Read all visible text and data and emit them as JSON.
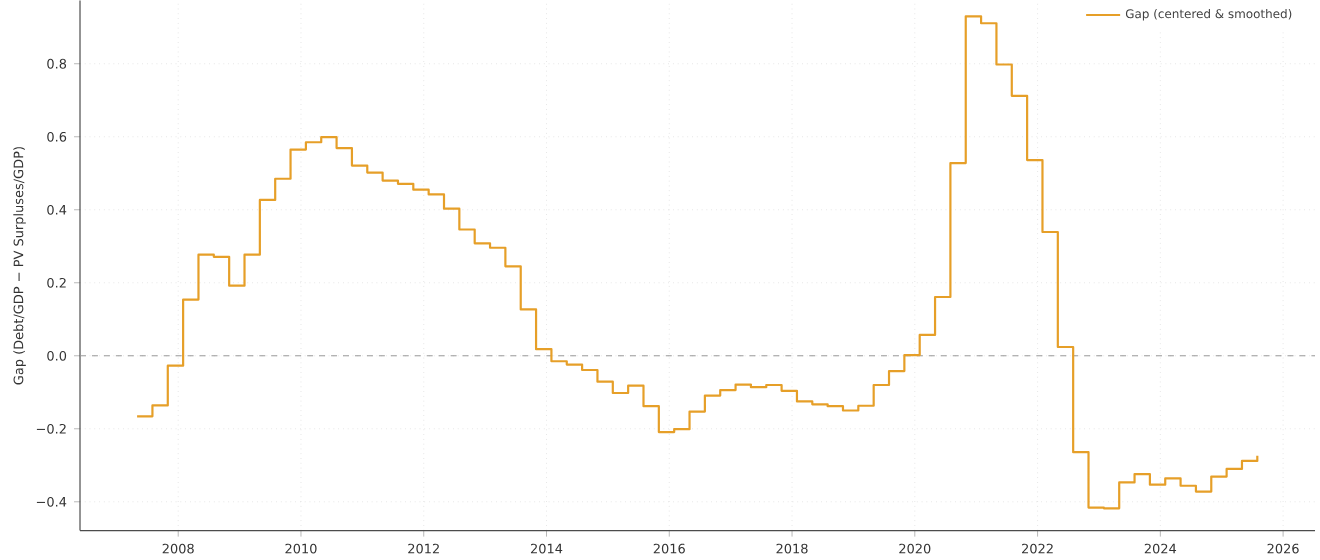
{
  "chart_data": {
    "type": "step",
    "ylabel": "Gap (Debt/GDP − PV Surpluses/GDP)",
    "x": [
      2007.33,
      2007.58,
      2007.83,
      2008.08,
      2008.33,
      2008.58,
      2008.83,
      2009.08,
      2009.33,
      2009.58,
      2009.83,
      2010.08,
      2010.33,
      2010.58,
      2010.83,
      2011.08,
      2011.33,
      2011.58,
      2011.83,
      2012.08,
      2012.33,
      2012.58,
      2012.83,
      2013.08,
      2013.33,
      2013.58,
      2013.83,
      2014.08,
      2014.33,
      2014.58,
      2014.83,
      2015.08,
      2015.33,
      2015.58,
      2015.83,
      2016.08,
      2016.33,
      2016.58,
      2016.83,
      2017.08,
      2017.33,
      2017.58,
      2017.83,
      2018.08,
      2018.33,
      2018.58,
      2018.83,
      2019.08,
      2019.33,
      2019.58,
      2019.83,
      2020.08,
      2020.33,
      2020.58,
      2020.83,
      2021.08,
      2021.33,
      2021.58,
      2021.83,
      2022.08,
      2022.33,
      2022.58,
      2022.83,
      2023.08,
      2023.33,
      2023.58,
      2023.83,
      2024.08,
      2024.33,
      2024.58,
      2024.83,
      2025.08,
      2025.33,
      2025.58
    ],
    "series": [
      {
        "name": "Gap (centered & smoothed)",
        "color": "#e69f28",
        "values": [
          -0.166,
          -0.136,
          -0.027,
          0.154,
          0.277,
          0.271,
          0.192,
          0.277,
          0.427,
          0.485,
          0.565,
          0.585,
          0.599,
          0.569,
          0.521,
          0.502,
          0.48,
          0.471,
          0.455,
          0.442,
          0.403,
          0.346,
          0.308,
          0.296,
          0.245,
          0.127,
          0.018,
          -0.015,
          -0.024,
          -0.039,
          -0.071,
          -0.102,
          -0.082,
          -0.138,
          -0.209,
          -0.201,
          -0.153,
          -0.109,
          -0.094,
          -0.079,
          -0.086,
          -0.08,
          -0.096,
          -0.125,
          -0.133,
          -0.138,
          -0.15,
          -0.137,
          -0.08,
          -0.042,
          0.002,
          0.057,
          0.161,
          0.528,
          0.93,
          0.911,
          0.798,
          0.712,
          0.536,
          0.339,
          0.024,
          -0.264,
          -0.416,
          -0.418,
          -0.347,
          -0.324,
          -0.353,
          -0.336,
          -0.356,
          -0.372,
          -0.331,
          -0.31,
          -0.288,
          -0.274
        ]
      }
    ],
    "xlim": [
      2006.4,
      2026.52
    ],
    "ylim": [
      -0.479,
      0.973
    ],
    "xticks": [
      2008,
      2010,
      2012,
      2014,
      2016,
      2018,
      2020,
      2022,
      2024,
      2026
    ],
    "yticks": [
      {
        "value": -0.4,
        "label": "−0.4"
      },
      {
        "value": -0.2,
        "label": "−0.2"
      },
      {
        "value": 0,
        "label": "0.0"
      },
      {
        "value": 0.2,
        "label": "0.2"
      },
      {
        "value": 0.4,
        "label": "0.4"
      },
      {
        "value": 0.6,
        "label": "0.6"
      },
      {
        "value": 0.8,
        "label": "0.8"
      }
    ],
    "ref_lines": [
      {
        "axis": "y",
        "value": 0,
        "color": "#999999",
        "line_style": "dashed"
      }
    ],
    "grid": true,
    "legend": "top right",
    "line_style": "solid"
  }
}
